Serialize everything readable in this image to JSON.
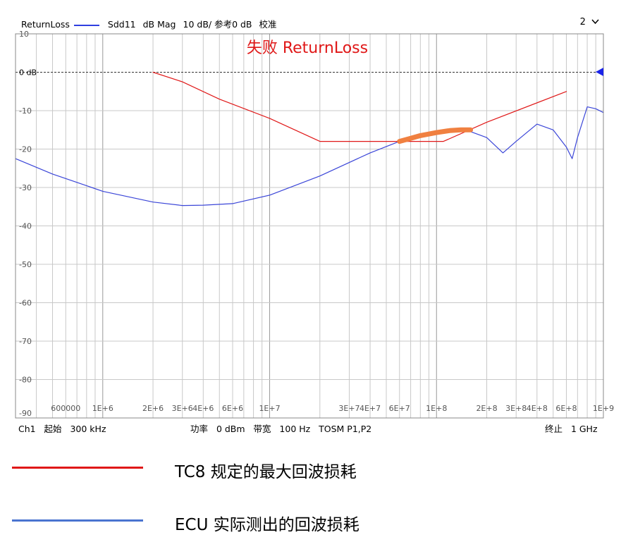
{
  "header": {
    "trace_name": "ReturnLoss",
    "param": "Sdd11",
    "format": "dB Mag",
    "scale": "10 dB/ 参考0 dB",
    "status": "校准",
    "channel_selector": "2"
  },
  "footer": {
    "channel": "Ch1",
    "start_label": "起始",
    "start_value": "300 kHz",
    "power_label": "功率",
    "power_value": "0 dBm",
    "bw_label": "带宽",
    "bw_value": "100 Hz",
    "cal": "TOSM P1,P2",
    "stop_label": "终止",
    "stop_value": "1 GHz"
  },
  "legend": [
    {
      "label": "TC8 规定的最大回波损耗",
      "color": "#e01818"
    },
    {
      "label": "ECU 实际测出的回波损耗",
      "color": "#4a74d0"
    }
  ],
  "chart_data": {
    "type": "line",
    "title": "失败  ReturnLoss",
    "title_color": "#e01818",
    "x_scale": "log",
    "x_range_hz": [
      300000,
      1000000000
    ],
    "ylim": [
      -90,
      10
    ],
    "y_ticks": [
      {
        "value": 10,
        "label": "10"
      },
      {
        "value": 0,
        "label": "0 dB"
      },
      {
        "value": -10,
        "label": "-10"
      },
      {
        "value": -20,
        "label": "-20"
      },
      {
        "value": -30,
        "label": "-30"
      },
      {
        "value": -40,
        "label": "-40"
      },
      {
        "value": -50,
        "label": "-50"
      },
      {
        "value": -60,
        "label": "-60"
      },
      {
        "value": -70,
        "label": "-70"
      },
      {
        "value": -80,
        "label": "-80"
      },
      {
        "value": -90,
        "label": "-90"
      }
    ],
    "x_tick_labels": [
      {
        "value": 600000,
        "label": "600000"
      },
      {
        "value": 1000000,
        "label": "1E+6"
      },
      {
        "value": 2000000,
        "label": "2E+6"
      },
      {
        "value": 3000000,
        "label": "3E+6"
      },
      {
        "value": 4000000,
        "label": "4E+6"
      },
      {
        "value": 6000000,
        "label": "6E+6"
      },
      {
        "value": 10000000,
        "label": "1E+7"
      },
      {
        "value": 30000000,
        "label": "3E+7"
      },
      {
        "value": 40000000,
        "label": "4E+7"
      },
      {
        "value": 60000000,
        "label": "6E+7"
      },
      {
        "value": 100000000,
        "label": "1E+8"
      },
      {
        "value": 200000000,
        "label": "2E+8"
      },
      {
        "value": 300000000,
        "label": "3E+8"
      },
      {
        "value": 400000000,
        "label": "4E+8"
      },
      {
        "value": 600000000,
        "label": "6E+8"
      },
      {
        "value": 1000000000,
        "label": "1E+9"
      }
    ],
    "reference_level": 0,
    "series": [
      {
        "name": "TC8 规定的最大回波损耗",
        "color": "#e01818",
        "x": [
          2000000,
          3000000,
          5000000,
          10000000,
          20000000,
          60000000,
          110000000,
          200000000,
          600000000
        ],
        "y": [
          0,
          -2.5,
          -7,
          -12,
          -18,
          -18,
          -18,
          -13,
          -5
        ]
      },
      {
        "name": "ECU 实际测出的回波损耗",
        "color": "#3b46d8",
        "x": [
          300000,
          500000,
          1000000,
          2000000,
          3000000,
          4000000,
          6000000,
          10000000,
          20000000,
          40000000,
          60000000,
          80000000,
          100000000,
          150000000,
          200000000,
          250000000,
          300000000,
          400000000,
          500000000,
          600000000,
          650000000,
          700000000,
          800000000,
          900000000,
          1000000000
        ],
        "y": [
          -22.5,
          -26.5,
          -31,
          -33.8,
          -34.7,
          -34.6,
          -34.2,
          -32,
          -27,
          -21,
          -18,
          -16.5,
          -15.5,
          -15,
          -17,
          -21,
          -18,
          -13.5,
          -15,
          -19.5,
          -22.5,
          -17,
          -9,
          -9.5,
          -10.5
        ]
      },
      {
        "name": "fail_region",
        "color": "#f08040",
        "x": [
          60000000,
          70000000,
          80000000,
          100000000,
          120000000,
          140000000,
          160000000
        ],
        "y": [
          -18,
          -17.2,
          -16.5,
          -15.7,
          -15.2,
          -15,
          -15
        ]
      }
    ]
  }
}
